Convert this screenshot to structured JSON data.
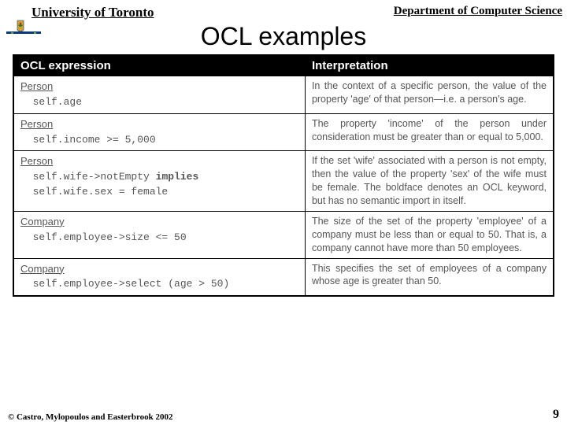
{
  "header": {
    "university": "University of Toronto",
    "department": "Department of Computer Science"
  },
  "title": "OCL examples",
  "table": {
    "columns": [
      "OCL expression",
      "Interpretation"
    ],
    "rows": [
      {
        "context": "Person",
        "code": "  self.age",
        "interp": "In the context of a specific person, the value of the property 'age' of that person—i.e. a person's age."
      },
      {
        "context": "Person",
        "code": "  self.income >= 5,000",
        "interp": "The property 'income' of the person under consideration must be greater than or equal to 5,000."
      },
      {
        "context": "Person",
        "code_html": "  self.wife->notEmpty <b>implies</b>\n  self.wife.sex = female",
        "interp": "If the set 'wife' associated with a person is not empty, then the value of the property 'sex' of the wife must be female. The boldface denotes an OCL keyword, but has no semantic import in itself."
      },
      {
        "context": "Company",
        "code": "  self.employee->size <= 50",
        "interp": "The size of the set of the property 'employee' of a company must be less than or equal to 50. That is, a company cannot have more than 50 employees."
      },
      {
        "context": "Company",
        "code": "  self.employee->select (age > 50)",
        "interp": "This specifies the set of employees of a company whose age is greater than 50."
      }
    ]
  },
  "footer": {
    "copyright": "© Castro, Mylopoulos and Easterbrook 2002",
    "page": "9"
  },
  "colors": {
    "bg": "#ffffff",
    "text": "#000000",
    "cell_text": "#555555",
    "table_header_bg": "#000000",
    "table_header_fg": "#ffffff"
  }
}
